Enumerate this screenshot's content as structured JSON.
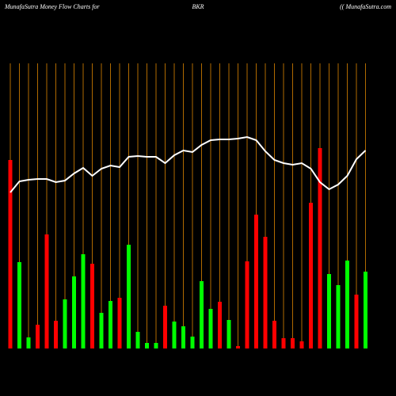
{
  "chart_data": {
    "type": "bar",
    "title": "MunafaSutra  Money Flow  Charts for",
    "subtitle": "BKR",
    "source": "(( MunafaSutra.com",
    "categories": [
      null,
      null,
      null,
      null,
      null,
      null,
      null,
      null,
      null,
      null,
      null,
      null,
      null,
      null,
      null,
      null,
      null,
      null,
      null,
      null,
      null,
      null,
      null,
      null,
      null,
      null,
      null,
      null,
      null,
      null,
      null,
      null,
      null,
      null,
      null,
      null,
      null,
      null,
      null,
      null
    ],
    "values": [
      238,
      109,
      14,
      30,
      144,
      35,
      62,
      91,
      119,
      107,
      45,
      60,
      64,
      131,
      21,
      7,
      7,
      54,
      34,
      28,
      15,
      85,
      50,
      59,
      36,
      3,
      110,
      169,
      141,
      35,
      13,
      13,
      9,
      184,
      253,
      94,
      80,
      111,
      68,
      97
    ],
    "colors": [
      "#ff0000",
      "#00ff00",
      "#00ff00",
      "#ff0000",
      "#ff0000",
      "#ff0000",
      "#00ff00",
      "#00ff00",
      "#00ff00",
      "#ff0000",
      "#00ff00",
      "#00ff00",
      "#ff0000",
      "#00ff00",
      "#00ff00",
      "#00ff00",
      "#00ff00",
      "#ff0000",
      "#00ff00",
      "#00ff00",
      "#00ff00",
      "#00ff00",
      "#00ff00",
      "#ff0000",
      "#00ff00",
      "#ff0000",
      "#ff0000",
      "#ff0000",
      "#ff0000",
      "#ff0000",
      "#ff0000",
      "#ff0000",
      "#ff0000",
      "#ff0000",
      "#ff0000",
      "#00ff00",
      "#00ff00",
      "#00ff00",
      "#ff0000",
      "#00ff00"
    ],
    "line": {
      "color": "#ffffff",
      "values": [
        197,
        211,
        213,
        214,
        214,
        210,
        212,
        221,
        228,
        218,
        227,
        231,
        229,
        242,
        243,
        242,
        242,
        234,
        244,
        250,
        248,
        257,
        263,
        264,
        264,
        265,
        267,
        263,
        249,
        238,
        234,
        232,
        234,
        227,
        210,
        201,
        207,
        218,
        239,
        250
      ]
    },
    "ylim": [
      0,
      360
    ],
    "grid_color": "#b06a00"
  }
}
